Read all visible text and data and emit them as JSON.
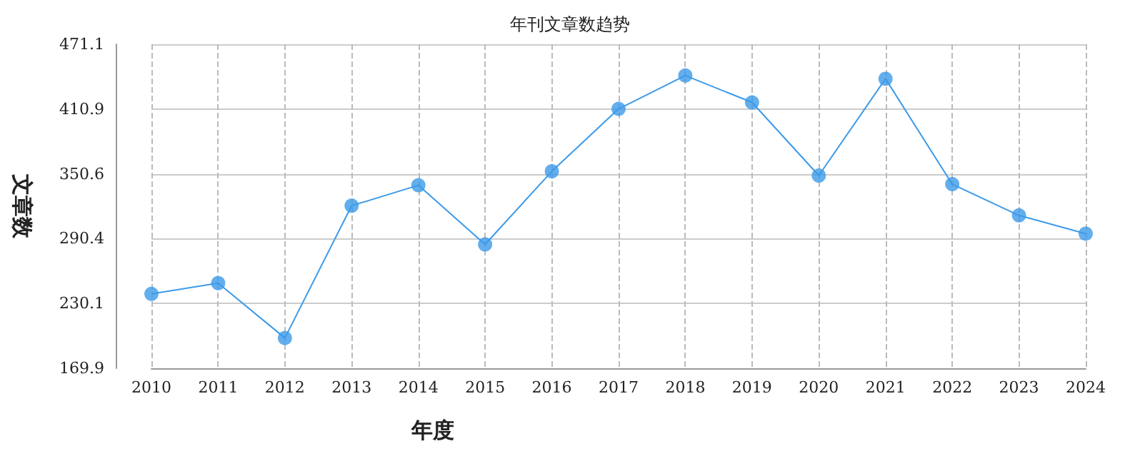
{
  "chart_data": {
    "type": "line",
    "title": "年刊文章数趋势",
    "xlabel": "年度",
    "ylabel": "文章数",
    "categories": [
      "2010",
      "2011",
      "2012",
      "2013",
      "2014",
      "2015",
      "2016",
      "2017",
      "2018",
      "2019",
      "2020",
      "2021",
      "2022",
      "2023",
      "2024"
    ],
    "series": [
      {
        "color": "#3c9ae8",
        "values": [
          239,
          249,
          198,
          321,
          340,
          285,
          353,
          411,
          442,
          417,
          349,
          439,
          341,
          312,
          295
        ]
      }
    ],
    "ylim": [
      169.9,
      471.1
    ],
    "yticks": [
      169.9,
      230.1,
      290.4,
      350.6,
      410.9,
      471.1
    ],
    "grid": true,
    "marker": "circle",
    "line_style": "solid"
  }
}
